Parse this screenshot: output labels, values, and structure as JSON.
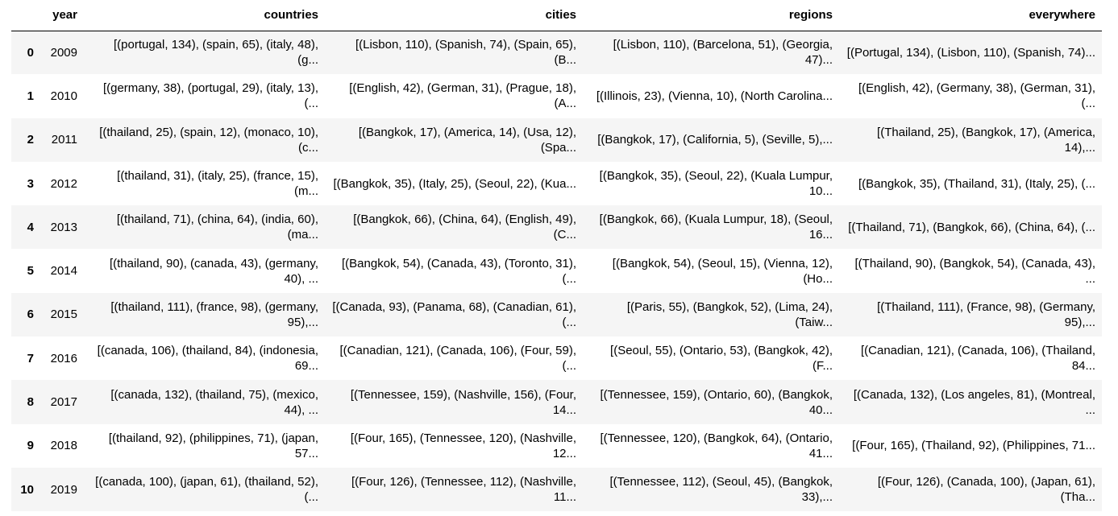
{
  "table": {
    "columns": [
      "",
      "year",
      "countries",
      "cities",
      "regions",
      "everywhere"
    ],
    "rows": [
      {
        "index": "0",
        "year": "2009",
        "countries": "[(portugal, 134), (spain, 65), (italy, 48), (g...",
        "cities": "[(Lisbon, 110), (Spanish, 74), (Spain, 65), (B...",
        "regions": "[(Lisbon, 110), (Barcelona, 51), (Georgia, 47)...",
        "everywhere": "[(Portugal, 134), (Lisbon, 110), (Spanish, 74)..."
      },
      {
        "index": "1",
        "year": "2010",
        "countries": "[(germany, 38), (portugal, 29), (italy, 13), (...",
        "cities": "[(English, 42), (German, 31), (Prague, 18), (A...",
        "regions": "[(Illinois, 23), (Vienna, 10), (North Carolina...",
        "everywhere": "[(English, 42), (Germany, 38), (German, 31), (..."
      },
      {
        "index": "2",
        "year": "2011",
        "countries": "[(thailand, 25), (spain, 12), (monaco, 10), (c...",
        "cities": "[(Bangkok, 17), (America, 14), (Usa, 12), (Spa...",
        "regions": "[(Bangkok, 17), (California, 5), (Seville, 5),...",
        "everywhere": "[(Thailand, 25), (Bangkok, 17), (America, 14),..."
      },
      {
        "index": "3",
        "year": "2012",
        "countries": "[(thailand, 31), (italy, 25), (france, 15), (m...",
        "cities": "[(Bangkok, 35), (Italy, 25), (Seoul, 22), (Kua...",
        "regions": "[(Bangkok, 35), (Seoul, 22), (Kuala Lumpur, 10...",
        "everywhere": "[(Bangkok, 35), (Thailand, 31), (Italy, 25), (..."
      },
      {
        "index": "4",
        "year": "2013",
        "countries": "[(thailand, 71), (china, 64), (india, 60), (ma...",
        "cities": "[(Bangkok, 66), (China, 64), (English, 49), (C...",
        "regions": "[(Bangkok, 66), (Kuala Lumpur, 18), (Seoul, 16...",
        "everywhere": "[(Thailand, 71), (Bangkok, 66), (China, 64), (..."
      },
      {
        "index": "5",
        "year": "2014",
        "countries": "[(thailand, 90), (canada, 43), (germany, 40), ...",
        "cities": "[(Bangkok, 54), (Canada, 43), (Toronto, 31), (...",
        "regions": "[(Bangkok, 54), (Seoul, 15), (Vienna, 12), (Ho...",
        "everywhere": "[(Thailand, 90), (Bangkok, 54), (Canada, 43), ..."
      },
      {
        "index": "6",
        "year": "2015",
        "countries": "[(thailand, 111), (france, 98), (germany, 95),...",
        "cities": "[(Canada, 93), (Panama, 68), (Canadian, 61), (...",
        "regions": "[(Paris, 55), (Bangkok, 52), (Lima, 24), (Taiw...",
        "everywhere": "[(Thailand, 111), (France, 98), (Germany, 95),..."
      },
      {
        "index": "7",
        "year": "2016",
        "countries": "[(canada, 106), (thailand, 84), (indonesia, 69...",
        "cities": "[(Canadian, 121), (Canada, 106), (Four, 59), (...",
        "regions": "[(Seoul, 55), (Ontario, 53), (Bangkok, 42), (F...",
        "everywhere": "[(Canadian, 121), (Canada, 106), (Thailand, 84..."
      },
      {
        "index": "8",
        "year": "2017",
        "countries": "[(canada, 132), (thailand, 75), (mexico, 44), ...",
        "cities": "[(Tennessee, 159), (Nashville, 156), (Four, 14...",
        "regions": "[(Tennessee, 159), (Ontario, 60), (Bangkok, 40...",
        "everywhere": "[(Canada, 132), (Los angeles, 81), (Montreal, ..."
      },
      {
        "index": "9",
        "year": "2018",
        "countries": "[(thailand, 92), (philippines, 71), (japan, 57...",
        "cities": "[(Four, 165), (Tennessee, 120), (Nashville, 12...",
        "regions": "[(Tennessee, 120), (Bangkok, 64), (Ontario, 41...",
        "everywhere": "[(Four, 165), (Thailand, 92), (Philippines, 71..."
      },
      {
        "index": "10",
        "year": "2019",
        "countries": "[(canada, 100), (japan, 61), (thailand, 52), (...",
        "cities": "[(Four, 126), (Tennessee, 112), (Nashville, 11...",
        "regions": "[(Tennessee, 112), (Seoul, 45), (Bangkok, 33),...",
        "everywhere": "[(Four, 126), (Canada, 100), (Japan, 61), (Tha..."
      }
    ]
  },
  "colors": {
    "row_stripe": "#f5f5f5",
    "row_plain": "#ffffff",
    "header_rule": "#000000"
  }
}
